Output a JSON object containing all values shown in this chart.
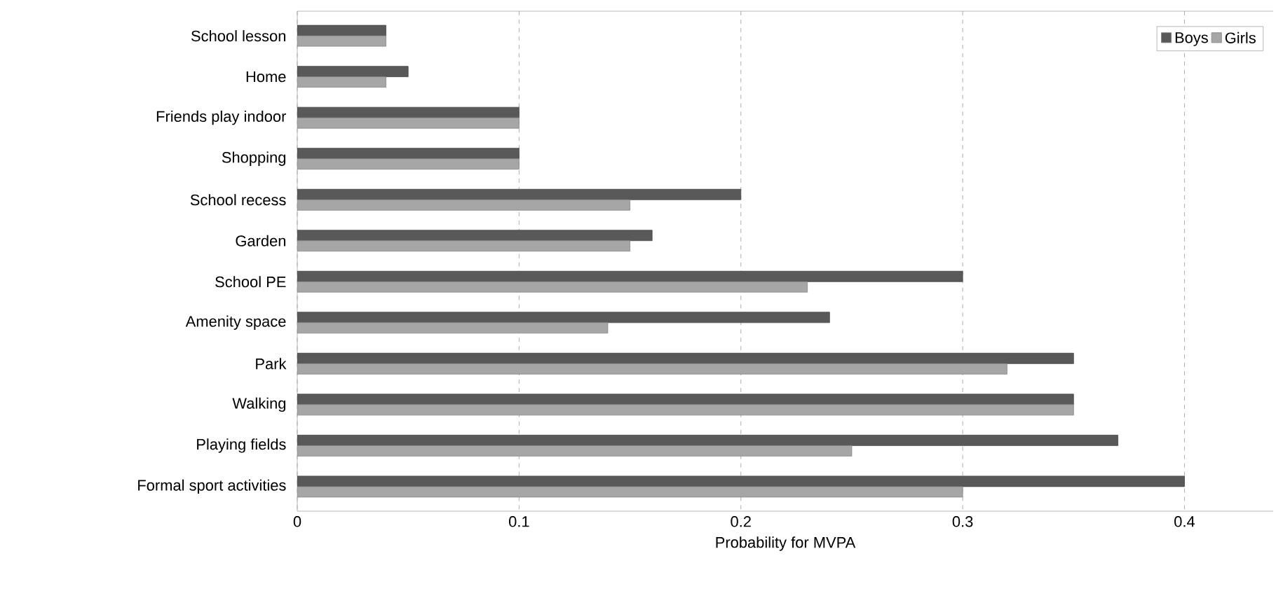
{
  "chart_data": {
    "type": "bar",
    "orientation": "horizontal",
    "xlabel": "Probability for MVPA",
    "categories": [
      "School lesson",
      "Home",
      "Friends play indoor",
      "Shopping",
      "School recess",
      "Garden",
      "School PE",
      "Amenity space",
      "Park",
      "Walking",
      "Playing fields",
      "Formal sport activities"
    ],
    "series": [
      {
        "name": "Boys",
        "color": "#595959",
        "values": [
          0.04,
          0.05,
          0.1,
          0.1,
          0.2,
          0.16,
          0.3,
          0.24,
          0.35,
          0.35,
          0.37,
          0.4
        ]
      },
      {
        "name": "Girls",
        "color": "#a6a6a6",
        "values": [
          0.04,
          0.04,
          0.1,
          0.1,
          0.15,
          0.15,
          0.23,
          0.14,
          0.32,
          0.35,
          0.25,
          0.3
        ]
      }
    ],
    "xlim": [
      0,
      0.44
    ],
    "xticks": [
      0,
      0.1,
      0.2,
      0.3,
      0.4
    ],
    "grid": "x",
    "legend": "top right"
  }
}
